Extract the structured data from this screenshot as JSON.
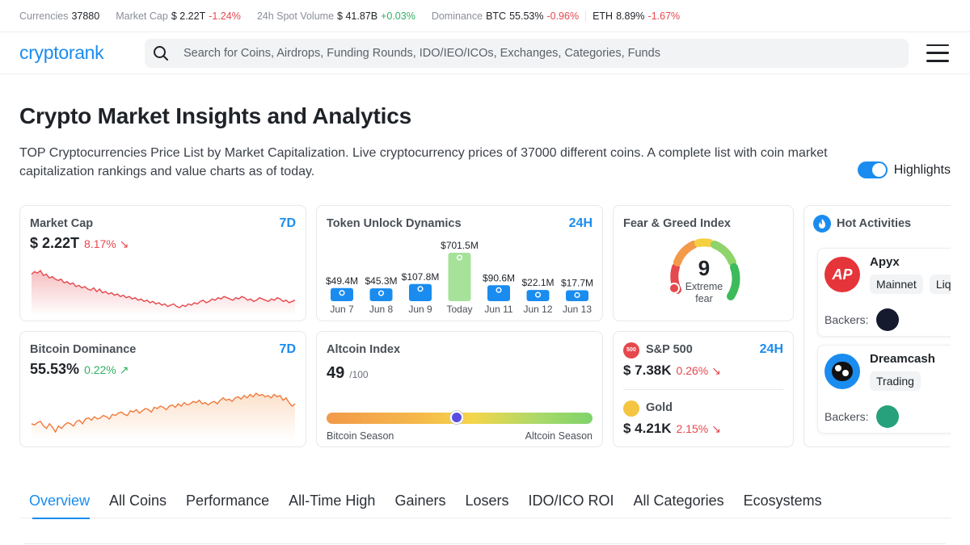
{
  "topbar": {
    "currencies_label": "Currencies",
    "currencies_value": "37880",
    "mcap_label": "Market Cap",
    "mcap_value": "$ 2.22T",
    "mcap_change": "-1.24%",
    "volume_label": "24h Spot Volume",
    "volume_value": "$ 41.87B",
    "volume_change": "+0.03%",
    "dominance_label": "Dominance",
    "btc_label": "BTC",
    "btc_value": "55.53%",
    "btc_change": "-0.96%",
    "eth_label": "ETH",
    "eth_value": "8.89%",
    "eth_change": "-1.67%"
  },
  "header": {
    "logo": "cryptorank",
    "search_placeholder": "Search for Coins, Airdrops, Funding Rounds, IDO/IEO/ICOs, Exchanges, Categories, Funds"
  },
  "hero": {
    "title": "Crypto Market Insights and Analytics",
    "description": "TOP Cryptocurrencies Price List by Market Capitalization. Live cryptocurrency prices of 37000 different coins. A complete list with coin market capitalization rankings and value charts as of today.",
    "highlights_label": "Highlights",
    "highlights_on": true
  },
  "cards": {
    "market_cap": {
      "title": "Market Cap",
      "period": "7D",
      "value": "$ 2.22T",
      "change": "8.17%",
      "arrow": "↘",
      "color": "#e5484d"
    },
    "btc_dominance": {
      "title": "Bitcoin Dominance",
      "period": "7D",
      "value": "55.53%",
      "change": "0.22%",
      "arrow": "↗",
      "color": "#f07a3c"
    },
    "token_unlock": {
      "title": "Token Unlock Dynamics",
      "period": "24H"
    },
    "fear_greed": {
      "title": "Fear & Greed Index",
      "value": "9",
      "label_line1": "Extreme",
      "label_line2": "fear",
      "level": 9
    },
    "altcoin": {
      "title": "Altcoin Index",
      "value": "49",
      "suffix": "/100",
      "left_label": "Bitcoin Season",
      "right_label": "Altcoin Season",
      "level": 49
    },
    "sp500": {
      "title": "S&P 500",
      "period": "24H",
      "value": "$ 7.38K",
      "change": "0.26%",
      "arrow": "↘",
      "badge": "500"
    },
    "gold": {
      "title": "Gold",
      "value": "$ 4.21K",
      "change": "2.15%",
      "arrow": "↘"
    },
    "hot": {
      "title": "Hot Activities",
      "backers_label": "Backers:",
      "items": [
        {
          "name": "Apyx",
          "tags": [
            "Mainnet",
            "Liq"
          ]
        },
        {
          "name": "Dreamcash",
          "tags": [
            "Trading"
          ]
        }
      ]
    }
  },
  "chart_data": [
    {
      "type": "bar",
      "title": "Token Unlock Dynamics",
      "categories": [
        "Jun 7",
        "Jun 8",
        "Jun 9",
        "Today",
        "Jun 11",
        "Jun 12",
        "Jun 13"
      ],
      "values": [
        49.4,
        45.3,
        107.8,
        701.5,
        90.6,
        22.1,
        17.7
      ],
      "labels": [
        "$49.4M",
        "$45.3M",
        "$107.8M",
        "$701.5M",
        "$90.6M",
        "$22.1M",
        "$17.7M"
      ],
      "highlight_index": 3
    },
    {
      "type": "line",
      "title": "Market Cap",
      "period": "7D",
      "series": [
        {
          "values": [
            62,
            64,
            63,
            65,
            61,
            62,
            59,
            60,
            58,
            57,
            58,
            55,
            56,
            54,
            55,
            52,
            53,
            51,
            52,
            50,
            49,
            51,
            48,
            50,
            47,
            48,
            46,
            47,
            45,
            46,
            44,
            45,
            43,
            44,
            42,
            43,
            41,
            42,
            40,
            41,
            39,
            40,
            38,
            39,
            37,
            38,
            36,
            37,
            38,
            36,
            35,
            37,
            36,
            38,
            37,
            39,
            38,
            40,
            41,
            39,
            40,
            42,
            41,
            43,
            42,
            44,
            43,
            42,
            41,
            43,
            42,
            44,
            43,
            41,
            42,
            40,
            41,
            43,
            42,
            41,
            40,
            42,
            41,
            43,
            42,
            40,
            41,
            39,
            40,
            41
          ]
        }
      ]
    },
    {
      "type": "line",
      "title": "Bitcoin Dominance",
      "period": "7D",
      "series": [
        {
          "values": [
            40,
            39,
            41,
            42,
            38,
            36,
            40,
            37,
            33,
            38,
            36,
            39,
            41,
            40,
            38,
            42,
            43,
            40,
            44,
            45,
            43,
            46,
            44,
            45,
            47,
            46,
            44,
            48,
            47,
            49,
            50,
            48,
            47,
            51,
            50,
            52,
            49,
            51,
            53,
            52,
            50,
            54,
            53,
            55,
            54,
            52,
            55,
            56,
            54,
            57,
            55,
            58,
            56,
            57,
            59,
            58,
            60,
            57,
            58,
            56,
            58,
            59,
            57,
            60,
            62,
            60,
            61,
            59,
            62,
            63,
            61,
            64,
            62,
            65,
            63,
            66,
            64,
            65,
            63,
            64,
            62,
            65,
            63,
            64,
            60,
            62,
            58,
            55,
            57
          ]
        }
      ]
    }
  ]
}
